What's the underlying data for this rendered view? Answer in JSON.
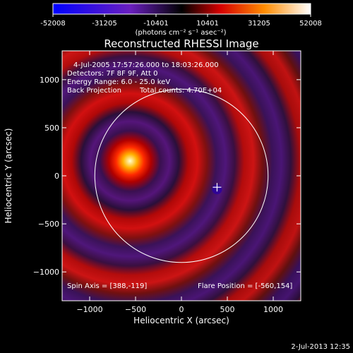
{
  "chart_data": {
    "type": "heatmap",
    "title": "Reconstructed RHESSI Image",
    "colorbar": {
      "ticks": [
        -52008,
        -31205,
        -10401,
        10401,
        31205,
        52008
      ],
      "tick_labels": [
        "-52008",
        "-31205",
        "-10401",
        "10401",
        "31205",
        "52008"
      ],
      "range": [
        -52008,
        52008
      ],
      "unit_text": "(photons cm⁻² s⁻¹ asec⁻²)",
      "colors": [
        "#0000ff",
        "#6a1fbf",
        "#000000",
        "#d60000",
        "#ff8c00",
        "#ffffff"
      ]
    },
    "xlabel": "Heliocentric X (arcsec)",
    "ylabel": "Heliocentric Y (arcsec)",
    "xlim": [
      -1300,
      1300
    ],
    "ylim": [
      -1300,
      1300
    ],
    "xticks": [
      -1000,
      -500,
      0,
      500,
      1000
    ],
    "xtick_labels": [
      "−1000",
      "−500",
      "0",
      "500",
      "1000"
    ],
    "yticks": [
      -1000,
      -500,
      0,
      500,
      1000
    ],
    "ytick_labels": [
      "−1000",
      "−500",
      "0",
      "500",
      "1000"
    ],
    "solar_limb_radius": 944,
    "source_peak": {
      "x": -560,
      "y": 154
    },
    "spin_axis_point": {
      "x": 388,
      "y": -119
    },
    "annotations": {
      "time_range": "4-Jul-2005 17:57:26.000 to 18:03:26.000",
      "detectors": "Detectors: 7F 8F 9F, Att 0",
      "energy": "Energy Range: 6.0 - 25.0 keV",
      "method": "Back Projection",
      "counts": "Total counts: 4.70E+04",
      "spin_axis": "Spin Axis = [388,-119]",
      "flare_position": "Flare Position = [-560,154]"
    }
  },
  "footer": {
    "timestamp": "2-Jul-2013 12:35"
  }
}
